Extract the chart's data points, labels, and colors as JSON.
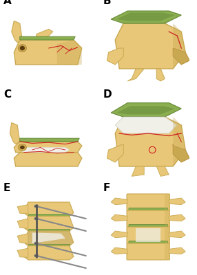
{
  "panel_labels": [
    "A",
    "B",
    "C",
    "D",
    "E",
    "F"
  ],
  "label_fontsize": 11,
  "label_fontweight": "bold",
  "background_color": "#ffffff",
  "panel_bg": "#ffffff",
  "border_color": "#cccccc",
  "bone_color": "#E8C878",
  "bone_dark": "#C8A850",
  "bone_shadow": "#B89040",
  "disc_color": "#6B8E3C",
  "disc_light": "#8AAE50",
  "crack_color": "#CC2020",
  "metal_color": "#888888",
  "metal_dark": "#555555",
  "white_fill": "#F0EFE8",
  "figure_width": 2.86,
  "figure_height": 4.0,
  "dpi": 100
}
